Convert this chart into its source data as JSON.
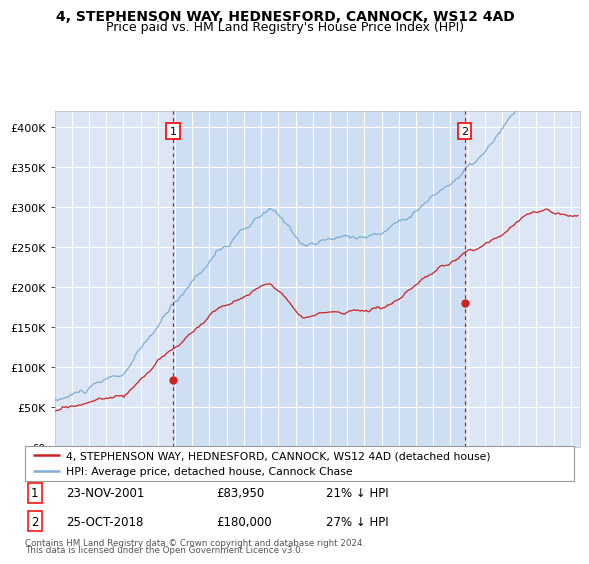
{
  "title1": "4, STEPHENSON WAY, HEDNESFORD, CANNOCK, WS12 4AD",
  "title2": "Price paid vs. HM Land Registry's House Price Index (HPI)",
  "ylim": [
    0,
    420000
  ],
  "xlim_start": 1995.0,
  "xlim_end": 2025.5,
  "bg_color": "#dce6f5",
  "grid_color": "#ffffff",
  "hpi_color": "#7eadd4",
  "price_color": "#cc2222",
  "shade_color": "#ccddf0",
  "marker1_x": 2001.9,
  "marker1_y": 83950,
  "marker2_x": 2018.82,
  "marker2_y": 180000,
  "legend_line1": "4, STEPHENSON WAY, HEDNESFORD, CANNOCK, WS12 4AD (detached house)",
  "legend_line2": "HPI: Average price, detached house, Cannock Chase",
  "footnote1": "Contains HM Land Registry data © Crown copyright and database right 2024.",
  "footnote2": "This data is licensed under the Open Government Licence v3.0."
}
